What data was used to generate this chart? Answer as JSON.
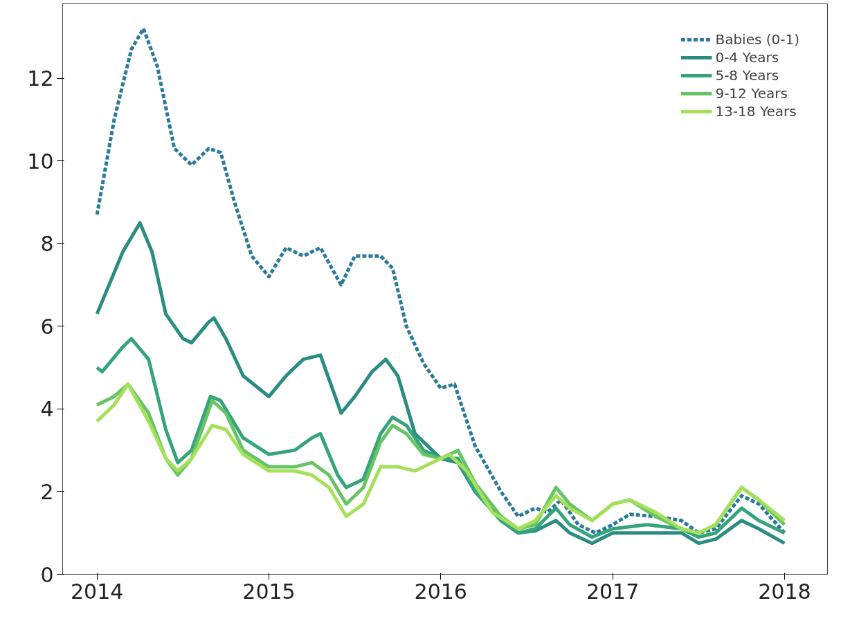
{
  "chart_data": {
    "type": "line",
    "xlim": [
      2013.8,
      2018.25
    ],
    "ylim": [
      0,
      13.8
    ],
    "xticks": [
      2014,
      2015,
      2016,
      2017,
      2018
    ],
    "yticks": [
      0,
      2,
      4,
      6,
      8,
      10,
      12
    ],
    "grid": false,
    "legend": "top right",
    "series": [
      {
        "name": "Babies (0-1)",
        "color": "#2b7a9b",
        "line_style": "dashed",
        "x": [
          2014,
          2014.1,
          2014.2,
          2014.27,
          2014.35,
          2014.45,
          2014.55,
          2014.65,
          2014.72,
          2014.8,
          2014.9,
          2015,
          2015.1,
          2015.2,
          2015.3,
          2015.42,
          2015.5,
          2015.65,
          2015.72,
          2015.8,
          2015.9,
          2016,
          2016.08,
          2016.2,
          2016.35,
          2016.45,
          2016.55,
          2016.62,
          2016.7,
          2016.8,
          2016.9,
          2017,
          2017.1,
          2017.25,
          2017.4,
          2017.5,
          2017.6,
          2017.75,
          2017.85,
          2018
        ],
        "values": [
          8.7,
          11,
          12.7,
          13.2,
          12.3,
          10.3,
          9.9,
          10.3,
          10.2,
          9,
          7.7,
          7.2,
          7.9,
          7.7,
          7.9,
          7.0,
          7.7,
          7.7,
          7.4,
          6,
          5.1,
          4.5,
          4.6,
          3.1,
          2.0,
          1.4,
          1.6,
          1.5,
          1.8,
          1.2,
          1.0,
          1.2,
          1.45,
          1.4,
          1.3,
          1.0,
          1.1,
          1.9,
          1.7,
          1.0
        ]
      },
      {
        "name": "0-4 Years",
        "color": "#2a8c82",
        "line_style": "solid",
        "x": [
          2014,
          2014.15,
          2014.25,
          2014.32,
          2014.4,
          2014.5,
          2014.55,
          2014.65,
          2014.68,
          2014.75,
          2014.85,
          2015,
          2015.1,
          2015.2,
          2015.3,
          2015.42,
          2015.5,
          2015.6,
          2015.68,
          2015.75,
          2015.85,
          2016,
          2016.1,
          2016.2,
          2016.35,
          2016.45,
          2016.55,
          2016.67,
          2016.75,
          2016.88,
          2017,
          2017.2,
          2017.4,
          2017.5,
          2017.6,
          2017.75,
          2017.85,
          2018
        ],
        "values": [
          6.3,
          7.8,
          8.5,
          7.8,
          6.3,
          5.7,
          5.6,
          6.1,
          6.2,
          5.7,
          4.8,
          4.3,
          4.8,
          5.2,
          5.3,
          3.9,
          4.3,
          4.9,
          5.2,
          4.8,
          3.4,
          2.8,
          2.7,
          2.0,
          1.3,
          1.0,
          1.05,
          1.3,
          1.0,
          0.75,
          1.0,
          1.0,
          1.0,
          0.75,
          0.85,
          1.3,
          1.1,
          0.75
        ]
      },
      {
        "name": "5-8 Years",
        "color": "#35a47a",
        "line_style": "solid",
        "x": [
          2014,
          2014.03,
          2014.15,
          2014.2,
          2014.3,
          2014.4,
          2014.47,
          2014.55,
          2014.66,
          2014.72,
          2014.85,
          2015,
          2015.15,
          2015.25,
          2015.3,
          2015.4,
          2015.45,
          2015.55,
          2015.65,
          2015.72,
          2015.8,
          2015.9,
          2016,
          2016.1,
          2016.2,
          2016.35,
          2016.45,
          2016.55,
          2016.67,
          2016.75,
          2016.88,
          2017,
          2017.2,
          2017.4,
          2017.5,
          2017.6,
          2017.75,
          2017.85,
          2018
        ],
        "values": [
          5.0,
          4.9,
          5.5,
          5.7,
          5.2,
          3.5,
          2.7,
          3.0,
          4.3,
          4.2,
          3.3,
          2.9,
          3.0,
          3.3,
          3.4,
          2.4,
          2.1,
          2.3,
          3.4,
          3.8,
          3.6,
          3.0,
          2.8,
          2.8,
          2.0,
          1.3,
          1.0,
          1.1,
          1.6,
          1.2,
          0.9,
          1.1,
          1.2,
          1.1,
          0.9,
          1.0,
          1.6,
          1.3,
          1.0
        ]
      },
      {
        "name": "9-12 Years",
        "color": "#66c466",
        "line_style": "solid",
        "x": [
          2014,
          2014.1,
          2014.18,
          2014.3,
          2014.4,
          2014.47,
          2014.55,
          2014.67,
          2014.75,
          2014.85,
          2015,
          2015.15,
          2015.25,
          2015.35,
          2015.45,
          2015.55,
          2015.65,
          2015.72,
          2015.8,
          2015.9,
          2016,
          2016.1,
          2016.2,
          2016.35,
          2016.45,
          2016.55,
          2016.67,
          2016.75,
          2016.88,
          2017,
          2017.1,
          2017.25,
          2017.4,
          2017.5,
          2017.6,
          2017.75,
          2017.85,
          2018
        ],
        "values": [
          4.1,
          4.3,
          4.6,
          3.9,
          2.8,
          2.4,
          2.8,
          4.2,
          3.9,
          3.0,
          2.6,
          2.6,
          2.7,
          2.4,
          1.7,
          2.1,
          3.2,
          3.6,
          3.4,
          2.9,
          2.8,
          3.0,
          2.2,
          1.4,
          1.1,
          1.2,
          2.1,
          1.7,
          1.3,
          1.7,
          1.8,
          1.4,
          1.1,
          1.0,
          1.2,
          2.1,
          1.8,
          1.2
        ]
      },
      {
        "name": "13-18 Years",
        "color": "#a6e05a",
        "line_style": "solid",
        "x": [
          2014,
          2014.1,
          2014.18,
          2014.3,
          2014.4,
          2014.47,
          2014.55,
          2014.67,
          2014.75,
          2014.85,
          2015,
          2015.15,
          2015.25,
          2015.35,
          2015.45,
          2015.55,
          2015.65,
          2015.75,
          2015.85,
          2015.95,
          2016.05,
          2016.15,
          2016.3,
          2016.45,
          2016.55,
          2016.67,
          2016.75,
          2016.88,
          2017,
          2017.1,
          2017.25,
          2017.4,
          2017.5,
          2017.6,
          2017.75,
          2017.85,
          2018
        ],
        "values": [
          3.7,
          4.1,
          4.6,
          3.7,
          2.8,
          2.5,
          2.8,
          3.6,
          3.5,
          2.9,
          2.5,
          2.5,
          2.4,
          2.1,
          1.4,
          1.7,
          2.6,
          2.6,
          2.5,
          2.7,
          2.9,
          2.5,
          1.5,
          1.1,
          1.3,
          1.9,
          1.6,
          1.3,
          1.7,
          1.8,
          1.5,
          1.1,
          1.0,
          1.2,
          2.1,
          1.8,
          1.3
        ]
      }
    ]
  }
}
